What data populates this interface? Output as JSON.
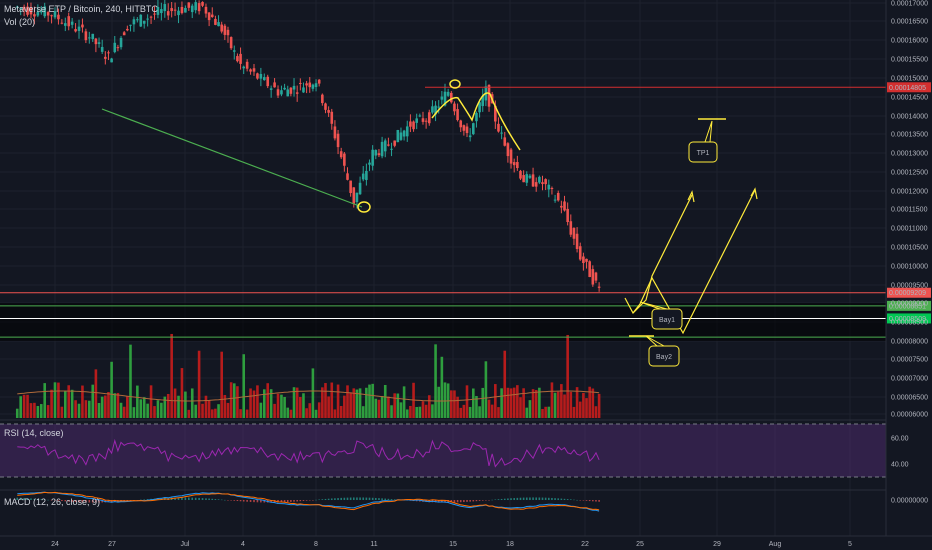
{
  "header": {
    "symbol": "Metaverse ETP / Bitcoin, 240, HITBTC",
    "vol_label": "Vol (20)"
  },
  "rsi_panel": {
    "label": "RSI (14, close)",
    "ticks": [
      "60.00",
      "40.00"
    ]
  },
  "macd_panel": {
    "label": "MACD (12, 26, close, 9)",
    "ticks": [
      "0.00000000"
    ]
  },
  "colors": {
    "up": "#26a69a",
    "down": "#ef5350",
    "vol_up": "#2e9e3e",
    "vol_down": "#b71c1c",
    "annotation": "#ffeb3b",
    "resistance": "#d32f2f",
    "support": "#4caf50",
    "rsi": "#9c27b0",
    "macd": "#2196f3",
    "signal": "#ff6d00"
  },
  "chart_data": {
    "type": "line",
    "title": "Metaverse ETP / Bitcoin, 240, HITBTC",
    "price_ticks": [
      "0.00017000",
      "0.00016500",
      "0.00016000",
      "0.00015500",
      "0.00015000",
      "0.00014500",
      "0.00014000",
      "0.00013500",
      "0.00013000",
      "0.00012500",
      "0.00012000",
      "0.00011500",
      "0.00011000",
      "0.00010500",
      "0.00010000",
      "0.00009500",
      "0.00009000",
      "0.00008500",
      "0.00008000",
      "0.00007500",
      "0.00007000",
      "0.00006500",
      "0.00006000"
    ],
    "x_ticks": [
      "24",
      "27",
      "Jul",
      "4",
      "8",
      "11",
      "15",
      "18",
      "22",
      "25",
      "29",
      "Aug",
      "5"
    ],
    "ylim": [
      5.92e-05,
      0.000171
    ],
    "price_series": {
      "name": "Close",
      "points": [
        {
          "x": "Jun 22",
          "y": 0.00017
        },
        {
          "x": "Jun 24",
          "y": 0.000168
        },
        {
          "x": "Jun 26",
          "y": 0.000162
        },
        {
          "x": "Jun 27",
          "y": 0.000156
        },
        {
          "x": "Jun 28",
          "y": 0.000165
        },
        {
          "x": "Jun 30",
          "y": 0.000169
        },
        {
          "x": "Jul 2",
          "y": 0.00017
        },
        {
          "x": "Jul 3",
          "y": 0.000164
        },
        {
          "x": "Jul 4",
          "y": 0.000154
        },
        {
          "x": "Jul 6",
          "y": 0.000147
        },
        {
          "x": "Jul 7",
          "y": 0.000148
        },
        {
          "x": "Jul 8",
          "y": 0.00015
        },
        {
          "x": "Jul 9",
          "y": 0.000135
        },
        {
          "x": "Jul 10",
          "y": 0.000117
        },
        {
          "x": "Jul 11",
          "y": 0.00013
        },
        {
          "x": "Jul 12",
          "y": 0.000133
        },
        {
          "x": "Jul 13",
          "y": 0.000138
        },
        {
          "x": "Jul 14",
          "y": 0.00014
        },
        {
          "x": "Jul 15",
          "y": 0.000147
        },
        {
          "x": "Jul 16",
          "y": 0.000134
        },
        {
          "x": "Jul 17",
          "y": 0.000147
        },
        {
          "x": "Jul 18",
          "y": 0.000132
        },
        {
          "x": "Jul 19",
          "y": 0.000123
        },
        {
          "x": "Jul 20",
          "y": 0.000122
        },
        {
          "x": "Jul 21",
          "y": 0.000116
        },
        {
          "x": "Jul 22",
          "y": 0.000102
        },
        {
          "x": "Jul 23",
          "y": 9.3e-05
        }
      ]
    },
    "levels": [
      {
        "label": "0.00014805",
        "value": 0.00014805
      },
      {
        "label": "0.00009209",
        "value": 9.209e-05
      },
      {
        "label": "0.00008851",
        "value": 8.851e-05
      },
      {
        "label": "0.00008509",
        "value": 8.509e-05
      },
      {
        "value": 8e-05
      }
    ],
    "annotations": [
      "TP1",
      "Bay1",
      "Bay2"
    ]
  }
}
